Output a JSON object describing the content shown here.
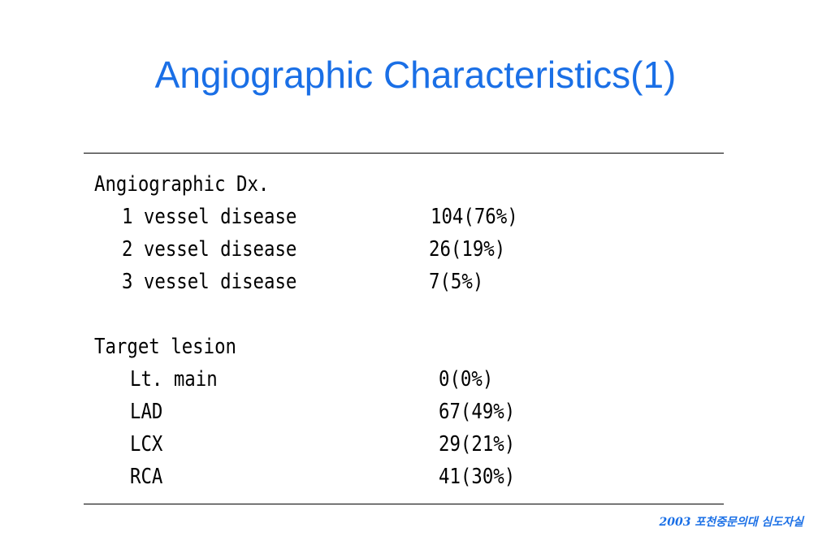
{
  "slide": {
    "title": "Angiographic Characteristics(1)",
    "footer": "2003 포천중문의대 심도자실"
  },
  "table": {
    "section1": {
      "heading": "Angiographic Dx.",
      "rows": [
        {
          "label": "1 vessel disease",
          "value": "104(76%)"
        },
        {
          "label": "2 vessel disease",
          "value": "26(19%)"
        },
        {
          "label": "3 vessel disease",
          "value": "7(5%)"
        }
      ]
    },
    "section2": {
      "heading": "Target lesion",
      "rows": [
        {
          "label": "Lt. main",
          "value": "0(0%)"
        },
        {
          "label": "LAD",
          "value": "67(49%)"
        },
        {
          "label": "LCX",
          "value": "29(21%)"
        },
        {
          "label": "RCA",
          "value": "41(30%)"
        }
      ]
    }
  },
  "colors": {
    "title": "#1a6fe6",
    "footer": "#1a6fe6",
    "text": "#000000"
  }
}
